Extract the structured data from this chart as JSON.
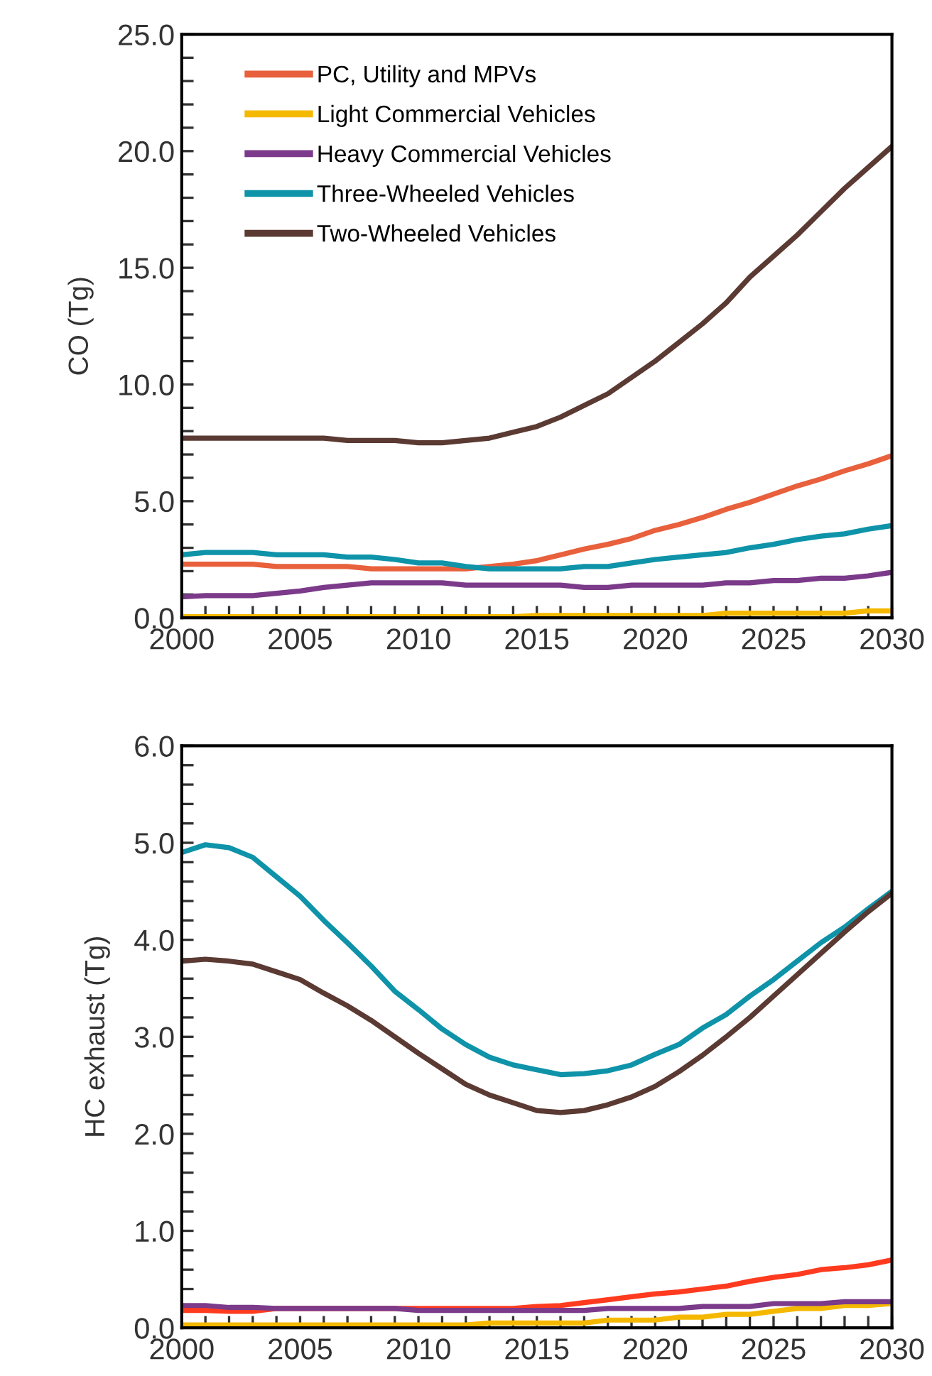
{
  "chart_data": [
    {
      "type": "line",
      "ylabel": "CO (Tg)",
      "legend": "top left",
      "line_style": "solid",
      "marker": "none",
      "x": [
        2000,
        2001,
        2002,
        2003,
        2004,
        2005,
        2006,
        2007,
        2008,
        2009,
        2010,
        2011,
        2012,
        2013,
        2014,
        2015,
        2016,
        2017,
        2018,
        2019,
        2020,
        2021,
        2022,
        2023,
        2024,
        2025,
        2026,
        2027,
        2028,
        2029,
        2030
      ],
      "xlim": [
        2000,
        2030
      ],
      "xticks": [
        2000,
        {
          "value": 2001,
          "label": null
        },
        {
          "value": 2002,
          "label": null
        },
        {
          "value": 2003,
          "label": null
        },
        {
          "value": 2004,
          "label": null
        },
        2005,
        {
          "value": 2006,
          "label": null
        },
        {
          "value": 2007,
          "label": null
        },
        {
          "value": 2008,
          "label": null
        },
        {
          "value": 2009,
          "label": null
        },
        2010,
        {
          "value": 2011,
          "label": null
        },
        {
          "value": 2012,
          "label": null
        },
        {
          "value": 2013,
          "label": null
        },
        {
          "value": 2014,
          "label": null
        },
        2015,
        {
          "value": 2016,
          "label": null
        },
        {
          "value": 2017,
          "label": null
        },
        {
          "value": 2018,
          "label": null
        },
        {
          "value": 2019,
          "label": null
        },
        2020,
        {
          "value": 2021,
          "label": null
        },
        {
          "value": 2022,
          "label": null
        },
        {
          "value": 2023,
          "label": null
        },
        {
          "value": 2024,
          "label": null
        },
        2025,
        {
          "value": 2026,
          "label": null
        },
        {
          "value": 2027,
          "label": null
        },
        {
          "value": 2028,
          "label": null
        },
        {
          "value": 2029,
          "label": null
        },
        2030
      ],
      "ylim": [
        0,
        25
      ],
      "yticks": [
        {
          "value": 0,
          "label": "0.0"
        },
        {
          "value": 1,
          "label": null
        },
        {
          "value": 2,
          "label": null
        },
        {
          "value": 3,
          "label": null
        },
        {
          "value": 4,
          "label": null
        },
        {
          "value": 5,
          "label": "5.0"
        },
        {
          "value": 6,
          "label": null
        },
        {
          "value": 7,
          "label": null
        },
        {
          "value": 8,
          "label": null
        },
        {
          "value": 9,
          "label": null
        },
        {
          "value": 10,
          "label": "10.0"
        },
        {
          "value": 11,
          "label": null
        },
        {
          "value": 12,
          "label": null
        },
        {
          "value": 13,
          "label": null
        },
        {
          "value": 14,
          "label": null
        },
        {
          "value": 15,
          "label": "15.0"
        },
        {
          "value": 16,
          "label": null
        },
        {
          "value": 17,
          "label": null
        },
        {
          "value": 18,
          "label": null
        },
        {
          "value": 19,
          "label": null
        },
        {
          "value": 20,
          "label": "20.0"
        },
        {
          "value": 21,
          "label": null
        },
        {
          "value": 22,
          "label": null
        },
        {
          "value": 23,
          "label": null
        },
        {
          "value": 24,
          "label": null
        },
        {
          "value": 25,
          "label": "25.0"
        }
      ],
      "series": [
        {
          "name": "PC, Utility and MPVs",
          "color": "#e8603c",
          "values": [
            2.3,
            2.3,
            2.3,
            2.3,
            2.2,
            2.2,
            2.2,
            2.2,
            2.1,
            2.1,
            2.1,
            2.1,
            2.1,
            2.2,
            2.3,
            2.45,
            2.7,
            2.95,
            3.15,
            3.4,
            3.75,
            4.0,
            4.3,
            4.65,
            4.95,
            5.3,
            5.65,
            5.95,
            6.3,
            6.6,
            6.95
          ]
        },
        {
          "name": "Light Commercial Vehicles",
          "color": "#f5b800",
          "values": [
            0.05,
            0.05,
            0.05,
            0.05,
            0.05,
            0.05,
            0.05,
            0.05,
            0.05,
            0.05,
            0.05,
            0.05,
            0.05,
            0.05,
            0.05,
            0.1,
            0.1,
            0.1,
            0.1,
            0.1,
            0.1,
            0.1,
            0.1,
            0.2,
            0.2,
            0.2,
            0.2,
            0.2,
            0.2,
            0.3,
            0.3
          ]
        },
        {
          "name": "Heavy Commercial Vehicles",
          "color": "#7b3a8a",
          "values": [
            0.9,
            0.95,
            0.95,
            0.95,
            1.05,
            1.15,
            1.3,
            1.4,
            1.5,
            1.5,
            1.5,
            1.5,
            1.4,
            1.4,
            1.4,
            1.4,
            1.4,
            1.3,
            1.3,
            1.4,
            1.4,
            1.4,
            1.4,
            1.5,
            1.5,
            1.6,
            1.6,
            1.7,
            1.7,
            1.8,
            1.95
          ]
        },
        {
          "name": "Three-Wheeled Vehicles",
          "color": "#0e93a9",
          "values": [
            2.7,
            2.8,
            2.8,
            2.8,
            2.7,
            2.7,
            2.7,
            2.6,
            2.6,
            2.5,
            2.35,
            2.35,
            2.2,
            2.1,
            2.1,
            2.1,
            2.1,
            2.2,
            2.2,
            2.35,
            2.5,
            2.6,
            2.7,
            2.8,
            3.0,
            3.15,
            3.35,
            3.5,
            3.6,
            3.8,
            3.95
          ]
        },
        {
          "name": "Two-Wheeled Vehicles",
          "color": "#5a3a32",
          "values": [
            7.7,
            7.7,
            7.7,
            7.7,
            7.7,
            7.7,
            7.7,
            7.6,
            7.6,
            7.6,
            7.5,
            7.5,
            7.6,
            7.7,
            7.95,
            8.2,
            8.6,
            9.1,
            9.6,
            10.3,
            11.0,
            11.8,
            12.6,
            13.5,
            14.6,
            15.5,
            16.4,
            17.4,
            18.4,
            19.3,
            20.2
          ]
        }
      ]
    },
    {
      "type": "line",
      "ylabel": "HC exhaust (Tg)",
      "line_style": "solid",
      "marker": "none",
      "x": [
        2000,
        2001,
        2002,
        2003,
        2004,
        2005,
        2006,
        2007,
        2008,
        2009,
        2010,
        2011,
        2012,
        2013,
        2014,
        2015,
        2016,
        2017,
        2018,
        2019,
        2020,
        2021,
        2022,
        2023,
        2024,
        2025,
        2026,
        2027,
        2028,
        2029,
        2030
      ],
      "xlim": [
        2000,
        2030
      ],
      "xticks": [
        2000,
        {
          "value": 2001,
          "label": null
        },
        {
          "value": 2002,
          "label": null
        },
        {
          "value": 2003,
          "label": null
        },
        {
          "value": 2004,
          "label": null
        },
        2005,
        {
          "value": 2006,
          "label": null
        },
        {
          "value": 2007,
          "label": null
        },
        {
          "value": 2008,
          "label": null
        },
        {
          "value": 2009,
          "label": null
        },
        2010,
        {
          "value": 2011,
          "label": null
        },
        {
          "value": 2012,
          "label": null
        },
        {
          "value": 2013,
          "label": null
        },
        {
          "value": 2014,
          "label": null
        },
        2015,
        {
          "value": 2016,
          "label": null
        },
        {
          "value": 2017,
          "label": null
        },
        {
          "value": 2018,
          "label": null
        },
        {
          "value": 2019,
          "label": null
        },
        2020,
        {
          "value": 2021,
          "label": null
        },
        {
          "value": 2022,
          "label": null
        },
        {
          "value": 2023,
          "label": null
        },
        {
          "value": 2024,
          "label": null
        },
        2025,
        {
          "value": 2026,
          "label": null
        },
        {
          "value": 2027,
          "label": null
        },
        {
          "value": 2028,
          "label": null
        },
        {
          "value": 2029,
          "label": null
        },
        2030
      ],
      "ylim": [
        0,
        6
      ],
      "yticks": [
        {
          "value": 0,
          "label": "0.0"
        },
        {
          "value": 0.2,
          "label": null
        },
        {
          "value": 0.4,
          "label": null
        },
        {
          "value": 0.6,
          "label": null
        },
        {
          "value": 0.8,
          "label": null
        },
        {
          "value": 1,
          "label": "1.0"
        },
        {
          "value": 1.2,
          "label": null
        },
        {
          "value": 1.4,
          "label": null
        },
        {
          "value": 1.6,
          "label": null
        },
        {
          "value": 1.8,
          "label": null
        },
        {
          "value": 2,
          "label": "2.0"
        },
        {
          "value": 2.2,
          "label": null
        },
        {
          "value": 2.4,
          "label": null
        },
        {
          "value": 2.6,
          "label": null
        },
        {
          "value": 2.8,
          "label": null
        },
        {
          "value": 3,
          "label": "3.0"
        },
        {
          "value": 3.2,
          "label": null
        },
        {
          "value": 3.4,
          "label": null
        },
        {
          "value": 3.6,
          "label": null
        },
        {
          "value": 3.8,
          "label": null
        },
        {
          "value": 4,
          "label": "4.0"
        },
        {
          "value": 4.2,
          "label": null
        },
        {
          "value": 4.4,
          "label": null
        },
        {
          "value": 4.6,
          "label": null
        },
        {
          "value": 4.8,
          "label": null
        },
        {
          "value": 5,
          "label": "5.0"
        },
        {
          "value": 5.2,
          "label": null
        },
        {
          "value": 5.4,
          "label": null
        },
        {
          "value": 5.6,
          "label": null
        },
        {
          "value": 5.8,
          "label": null
        },
        {
          "value": 6,
          "label": "6.0"
        }
      ],
      "series": [
        {
          "color": "#ff3b1f",
          "values": [
            0.18,
            0.18,
            0.17,
            0.17,
            0.2,
            0.2,
            0.2,
            0.2,
            0.2,
            0.2,
            0.2,
            0.2,
            0.2,
            0.2,
            0.2,
            0.22,
            0.23,
            0.26,
            0.29,
            0.32,
            0.35,
            0.37,
            0.4,
            0.43,
            0.48,
            0.52,
            0.55,
            0.6,
            0.62,
            0.65,
            0.7
          ]
        },
        {
          "color": "#f5b800",
          "values": [
            0.03,
            0.03,
            0.03,
            0.03,
            0.03,
            0.03,
            0.03,
            0.03,
            0.03,
            0.03,
            0.03,
            0.03,
            0.03,
            0.05,
            0.05,
            0.05,
            0.05,
            0.05,
            0.08,
            0.08,
            0.08,
            0.11,
            0.11,
            0.14,
            0.14,
            0.17,
            0.2,
            0.2,
            0.23,
            0.23,
            0.25
          ]
        },
        {
          "color": "#7b3a8a",
          "values": [
            0.23,
            0.23,
            0.21,
            0.21,
            0.2,
            0.2,
            0.2,
            0.2,
            0.2,
            0.2,
            0.18,
            0.18,
            0.18,
            0.18,
            0.18,
            0.18,
            0.18,
            0.18,
            0.2,
            0.2,
            0.2,
            0.2,
            0.22,
            0.22,
            0.22,
            0.25,
            0.25,
            0.25,
            0.27,
            0.27,
            0.27
          ]
        },
        {
          "color": "#0e93a9",
          "values": [
            4.9,
            4.98,
            4.95,
            4.85,
            4.65,
            4.45,
            4.2,
            3.97,
            3.73,
            3.47,
            3.28,
            3.08,
            2.92,
            2.79,
            2.71,
            2.66,
            2.61,
            2.62,
            2.65,
            2.71,
            2.82,
            2.92,
            3.09,
            3.23,
            3.42,
            3.59,
            3.78,
            3.97,
            4.13,
            4.32,
            4.5
          ]
        },
        {
          "color": "#5a3a32",
          "values": [
            3.78,
            3.8,
            3.78,
            3.75,
            3.67,
            3.59,
            3.45,
            3.32,
            3.17,
            3.0,
            2.83,
            2.67,
            2.51,
            2.4,
            2.32,
            2.24,
            2.22,
            2.24,
            2.3,
            2.38,
            2.49,
            2.64,
            2.81,
            3.0,
            3.2,
            3.42,
            3.64,
            3.86,
            4.08,
            4.29,
            4.48
          ]
        }
      ]
    }
  ]
}
